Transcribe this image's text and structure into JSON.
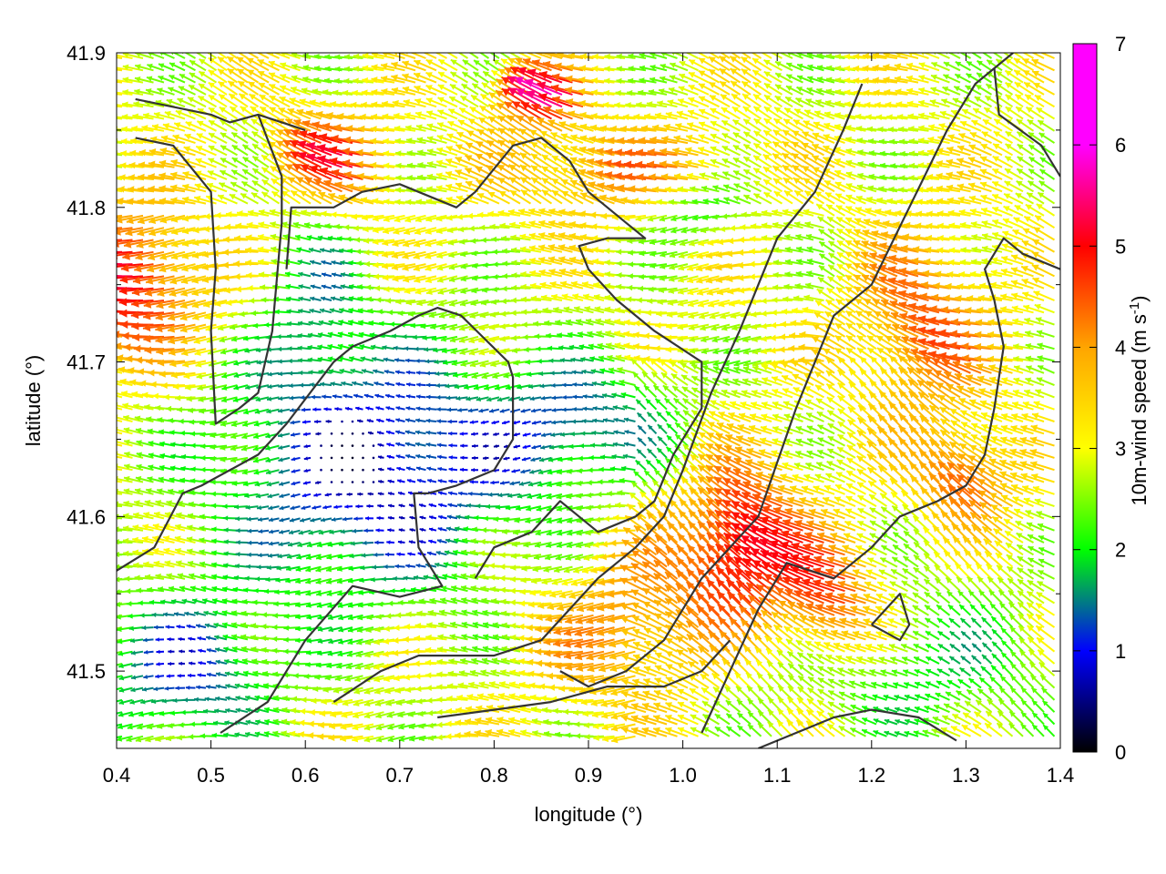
{
  "chart_data": {
    "type": "vector-field",
    "xlabel": "longitude (°)",
    "ylabel": "latitude (°)",
    "xlim": [
      0.4,
      1.4
    ],
    "ylim": [
      41.45,
      41.9
    ],
    "x_ticks": [
      "0.4",
      "0.5",
      "0.6",
      "0.7",
      "0.8",
      "0.9",
      "1.0",
      "1.1",
      "1.2",
      "1.3",
      "1.4"
    ],
    "y_ticks": [
      "41.5",
      "41.6",
      "41.7",
      "41.8",
      "41.9"
    ],
    "colorbar": {
      "label": "10m-wind speed (m s-1)",
      "label_main": "10m-wind speed (m s",
      "label_sup": "-1",
      "label_end": ")",
      "range": [
        0,
        7
      ],
      "ticks": [
        "0",
        "1",
        "2",
        "3",
        "4",
        "5",
        "6",
        "7"
      ],
      "colors": [
        "#000000",
        "#0000ff",
        "#00ff00",
        "#ffff00",
        "#ffa500",
        "#ff0000",
        "#ff00ff"
      ]
    },
    "grid": false,
    "wind_direction": "predominantly from east / south-east (arrows point west / north-west)",
    "contours": [
      [
        [
          0.42,
          41.87
        ],
        [
          0.46,
          41.865
        ],
        [
          0.5,
          41.86
        ],
        [
          0.52,
          41.855
        ],
        [
          0.55,
          41.86
        ],
        [
          0.6,
          41.85
        ]
      ],
      [
        [
          0.42,
          41.845
        ],
        [
          0.46,
          41.84
        ],
        [
          0.5,
          41.81
        ],
        [
          0.505,
          41.76
        ],
        [
          0.5,
          41.72
        ],
        [
          0.505,
          41.66
        ],
        [
          0.53,
          41.67
        ],
        [
          0.55,
          41.68
        ],
        [
          0.565,
          41.72
        ],
        [
          0.575,
          41.79
        ],
        [
          0.575,
          41.82
        ],
        [
          0.55,
          41.86
        ]
      ],
      [
        [
          0.4,
          41.565
        ],
        [
          0.44,
          41.58
        ],
        [
          0.47,
          41.615
        ],
        [
          0.49,
          41.62
        ],
        [
          0.55,
          41.64
        ],
        [
          0.58,
          41.66
        ],
        [
          0.63,
          41.7
        ],
        [
          0.65,
          41.71
        ],
        [
          0.69,
          41.72
        ],
        [
          0.72,
          41.73
        ],
        [
          0.74,
          41.735
        ],
        [
          0.765,
          41.73
        ],
        [
          0.79,
          41.715
        ],
        [
          0.815,
          41.7
        ],
        [
          0.82,
          41.69
        ],
        [
          0.82,
          41.65
        ],
        [
          0.8,
          41.63
        ],
        [
          0.76,
          41.62
        ],
        [
          0.73,
          41.615
        ],
        [
          0.715,
          41.615
        ],
        [
          0.72,
          41.58
        ],
        [
          0.745,
          41.555
        ],
        [
          0.7,
          41.548
        ],
        [
          0.65,
          41.555
        ],
        [
          0.6,
          41.52
        ],
        [
          0.56,
          41.48
        ],
        [
          0.51,
          41.46
        ]
      ],
      [
        [
          0.58,
          41.76
        ],
        [
          0.585,
          41.8
        ],
        [
          0.63,
          41.8
        ],
        [
          0.66,
          41.81
        ],
        [
          0.7,
          41.815
        ],
        [
          0.76,
          41.8
        ],
        [
          0.78,
          41.81
        ],
        [
          0.82,
          41.84
        ],
        [
          0.85,
          41.845
        ],
        [
          0.88,
          41.83
        ],
        [
          0.9,
          41.81
        ],
        [
          0.94,
          41.79
        ],
        [
          0.96,
          41.78
        ],
        [
          0.92,
          41.78
        ],
        [
          0.89,
          41.775
        ],
        [
          0.9,
          41.76
        ],
        [
          0.93,
          41.74
        ],
        [
          0.97,
          41.72
        ],
        [
          1.02,
          41.7
        ],
        [
          1.02,
          41.67
        ],
        [
          0.99,
          41.64
        ],
        [
          0.97,
          41.61
        ],
        [
          0.95,
          41.6
        ],
        [
          0.91,
          41.59
        ],
        [
          0.89,
          41.6
        ],
        [
          0.87,
          41.61
        ],
        [
          0.84,
          41.59
        ],
        [
          0.8,
          41.58
        ],
        [
          0.78,
          41.56
        ]
      ],
      [
        [
          0.63,
          41.48
        ],
        [
          0.68,
          41.5
        ],
        [
          0.72,
          41.51
        ],
        [
          0.8,
          41.51
        ],
        [
          0.85,
          41.52
        ],
        [
          0.88,
          41.54
        ],
        [
          0.91,
          41.56
        ],
        [
          0.95,
          41.58
        ],
        [
          0.98,
          41.6
        ],
        [
          1.0,
          41.63
        ],
        [
          1.03,
          41.68
        ],
        [
          1.06,
          41.72
        ],
        [
          1.1,
          41.78
        ],
        [
          1.14,
          41.81
        ],
        [
          1.17,
          41.85
        ],
        [
          1.19,
          41.88
        ]
      ],
      [
        [
          0.87,
          41.5
        ],
        [
          0.9,
          41.49
        ],
        [
          0.94,
          41.5
        ],
        [
          0.98,
          41.52
        ],
        [
          1.02,
          41.56
        ],
        [
          1.08,
          41.6
        ],
        [
          1.12,
          41.67
        ],
        [
          1.16,
          41.73
        ],
        [
          1.2,
          41.75
        ],
        [
          1.24,
          41.8
        ],
        [
          1.28,
          41.85
        ],
        [
          1.31,
          41.88
        ],
        [
          1.35,
          41.9
        ]
      ],
      [
        [
          0.74,
          41.47
        ],
        [
          0.8,
          41.475
        ],
        [
          0.86,
          41.48
        ],
        [
          0.92,
          41.49
        ],
        [
          0.98,
          41.49
        ],
        [
          1.02,
          41.5
        ],
        [
          1.05,
          41.52
        ]
      ],
      [
        [
          1.02,
          41.46
        ],
        [
          1.05,
          41.5
        ],
        [
          1.08,
          41.54
        ],
        [
          1.11,
          41.57
        ],
        [
          1.16,
          41.56
        ],
        [
          1.2,
          41.58
        ],
        [
          1.23,
          41.6
        ],
        [
          1.27,
          41.61
        ],
        [
          1.3,
          41.62
        ],
        [
          1.32,
          41.64
        ],
        [
          1.33,
          41.67
        ],
        [
          1.34,
          41.71
        ],
        [
          1.33,
          41.74
        ],
        [
          1.32,
          41.76
        ],
        [
          1.34,
          41.78
        ],
        [
          1.36,
          41.77
        ],
        [
          1.4,
          41.76
        ]
      ],
      [
        [
          1.2,
          41.53
        ],
        [
          1.23,
          41.52
        ],
        [
          1.24,
          41.53
        ],
        [
          1.23,
          41.55
        ],
        [
          1.2,
          41.53
        ]
      ],
      [
        [
          1.08,
          41.45
        ],
        [
          1.12,
          41.46
        ],
        [
          1.16,
          41.47
        ],
        [
          1.2,
          41.475
        ],
        [
          1.25,
          41.47
        ],
        [
          1.29,
          41.455
        ]
      ],
      [
        [
          1.33,
          41.89
        ],
        [
          1.335,
          41.86
        ],
        [
          1.38,
          41.84
        ],
        [
          1.4,
          41.82
        ]
      ]
    ]
  }
}
